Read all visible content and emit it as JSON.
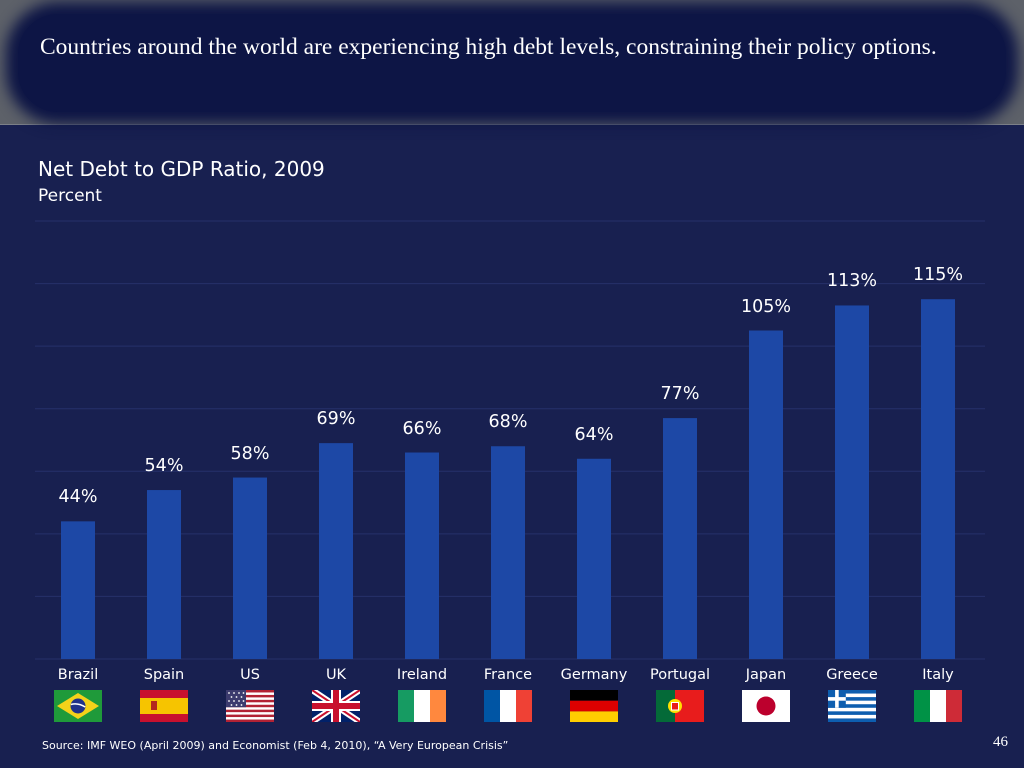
{
  "slide": {
    "title": "Countries around the world are experiencing high debt levels, constraining their policy options.",
    "source": "Source: IMF WEO (April 2009) and Economist (Feb 4, 2010), “A Very European Crisis”",
    "page_number": "46"
  },
  "colors": {
    "background": "#182050",
    "bar": "#1d48a6",
    "header": "#5d6169",
    "text": "#ffffff"
  },
  "chart_data": {
    "type": "bar",
    "title": "Net Debt to GDP Ratio, 2009",
    "subtitle": "Percent",
    "categories": [
      "Brazil",
      "Spain",
      "US",
      "UK",
      "Ireland",
      "France",
      "Germany",
      "Portugal",
      "Japan",
      "Greece",
      "Italy"
    ],
    "values": [
      44,
      54,
      58,
      69,
      66,
      68,
      64,
      77,
      105,
      113,
      115
    ],
    "value_labels": [
      "44%",
      "54%",
      "58%",
      "69%",
      "66%",
      "68%",
      "64%",
      "77%",
      "105%",
      "113%",
      "115%"
    ],
    "ylim": [
      0,
      140
    ],
    "grid": true,
    "category_icons": [
      "brazil-flag",
      "spain-flag",
      "us-flag",
      "uk-flag",
      "ireland-flag",
      "france-flag",
      "germany-flag",
      "portugal-flag",
      "japan-flag",
      "greece-flag",
      "italy-flag"
    ]
  }
}
